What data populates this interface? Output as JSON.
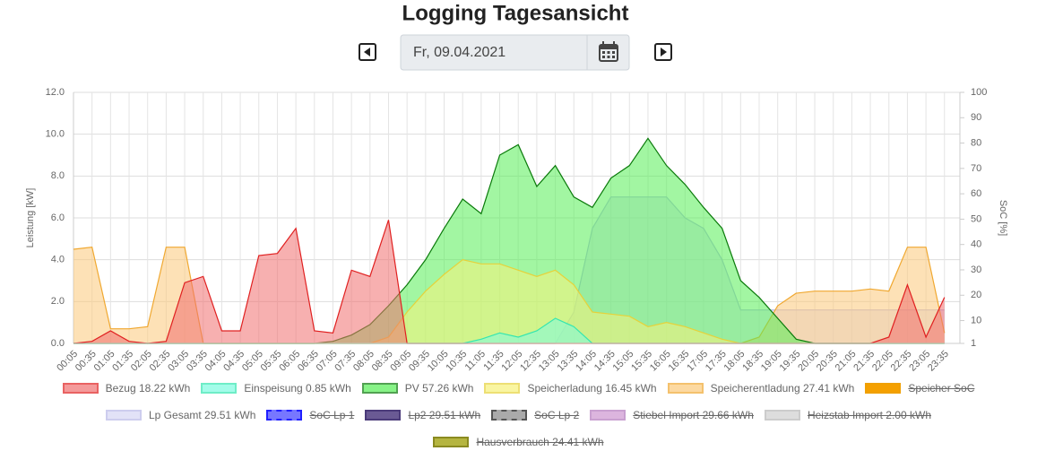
{
  "page": {
    "title": "Logging Tagesansicht",
    "date": "Fr, 09.04.2021"
  },
  "chart_data": {
    "type": "area",
    "y_label": "Leistung [kW]",
    "y2_label": "SoC [%]",
    "categories": [
      "00:05",
      "00:35",
      "01:05",
      "01:35",
      "02:05",
      "02:35",
      "03:05",
      "03:35",
      "04:05",
      "04:35",
      "05:05",
      "05:35",
      "06:05",
      "06:35",
      "07:05",
      "07:35",
      "08:05",
      "08:35",
      "09:05",
      "09:35",
      "10:05",
      "10:35",
      "11:05",
      "11:35",
      "12:05",
      "12:35",
      "13:05",
      "13:35",
      "14:05",
      "14:35",
      "15:05",
      "15:35",
      "16:05",
      "16:35",
      "17:05",
      "17:35",
      "18:05",
      "18:35",
      "19:05",
      "19:35",
      "20:05",
      "20:35",
      "21:05",
      "21:35",
      "22:05",
      "22:35",
      "23:05",
      "23:35"
    ],
    "ylim": [
      0,
      12
    ],
    "yticks": [
      {
        "value": 0,
        "label": "0.0"
      },
      {
        "value": 2,
        "label": "2.0"
      },
      {
        "value": 4,
        "label": "4.0"
      },
      {
        "value": 6,
        "label": "6.0"
      },
      {
        "value": 8,
        "label": "8.0"
      },
      {
        "value": 10,
        "label": "10.0"
      },
      {
        "value": 12,
        "label": "12.0"
      }
    ],
    "y2lim": [
      1,
      100
    ],
    "y2ticks": [
      1,
      10,
      20,
      30,
      40,
      50,
      60,
      70,
      80,
      90,
      100
    ],
    "grid": true,
    "series": [
      {
        "name": "Lp Gesamt 29.51 kWh",
        "color": "#b9b9e8",
        "fill": "#d6d6f5",
        "values": [
          0,
          0,
          0,
          0,
          0,
          0,
          0,
          0,
          0,
          0,
          0,
          0,
          0,
          0,
          0,
          0,
          0,
          0,
          0,
          0,
          0,
          0,
          0,
          0,
          0,
          0,
          0,
          1.5,
          5.5,
          7.0,
          7.0,
          7.0,
          7.0,
          6.0,
          5.5,
          4.0,
          1.6,
          1.6,
          1.6,
          1.6,
          1.6,
          1.6,
          1.6,
          1.6,
          1.6,
          1.6,
          1.6,
          1.6
        ]
      },
      {
        "name": "Speicherentladung 27.41 kWh",
        "color": "#f0a830",
        "fill": "#fcc97a",
        "values": [
          4.5,
          4.6,
          0.7,
          0.7,
          0.8,
          4.6,
          4.6,
          0,
          0,
          0,
          0,
          0,
          0,
          0,
          0,
          0,
          0,
          0,
          0,
          0,
          0,
          0,
          0,
          0,
          0,
          0,
          0,
          0,
          0,
          0,
          0,
          0,
          0,
          0,
          0,
          0,
          0,
          0.3,
          1.8,
          2.4,
          2.5,
          2.5,
          2.5,
          2.6,
          2.5,
          4.6,
          4.6,
          0.5
        ]
      },
      {
        "name": "PV 57.26 kWh",
        "color": "#0a7a0a",
        "fill": "#55ee55",
        "values": [
          0,
          0,
          0,
          0,
          0,
          0,
          0,
          0,
          0,
          0,
          0,
          0,
          0,
          0,
          0.1,
          0.4,
          0.9,
          1.8,
          2.8,
          4.0,
          5.5,
          6.9,
          6.2,
          9.0,
          9.5,
          7.5,
          8.5,
          7.0,
          6.5,
          7.9,
          8.5,
          9.8,
          8.5,
          7.6,
          6.5,
          5.5,
          3.0,
          2.2,
          1.2,
          0.2,
          0,
          0,
          0,
          0,
          0,
          0,
          0,
          0
        ]
      },
      {
        "name": "Speicherladung 16.45 kWh",
        "color": "#e6d23a",
        "fill": "#f7f27a",
        "values": [
          0,
          0,
          0,
          0,
          0,
          0,
          0,
          0,
          0,
          0,
          0,
          0,
          0,
          0,
          0,
          0,
          0,
          0.3,
          1.5,
          2.5,
          3.3,
          4.0,
          3.8,
          3.8,
          3.5,
          3.2,
          3.5,
          2.8,
          1.5,
          1.4,
          1.3,
          0.8,
          1.0,
          0.8,
          0.5,
          0.2,
          0,
          0,
          0,
          0,
          0,
          0,
          0,
          0,
          0,
          0,
          0,
          0
        ]
      },
      {
        "name": "Einspeisung 0.85 kWh",
        "color": "#33e6b0",
        "fill": "#7dfce0",
        "values": [
          0,
          0,
          0,
          0,
          0,
          0,
          0,
          0,
          0,
          0,
          0,
          0,
          0,
          0,
          0,
          0,
          0,
          0,
          0,
          0,
          0,
          0,
          0.2,
          0.5,
          0.3,
          0.6,
          1.2,
          0.8,
          0,
          0,
          0,
          0,
          0,
          0,
          0,
          0,
          0,
          0,
          0,
          0,
          0,
          0,
          0,
          0,
          0,
          0,
          0,
          0
        ]
      },
      {
        "name": "Bezug 18.22 kWh",
        "color": "#e02020",
        "fill": "#f07070",
        "values": [
          0,
          0.1,
          0.6,
          0.1,
          0,
          0.1,
          2.9,
          3.2,
          0.6,
          0.6,
          4.2,
          4.3,
          5.5,
          0.6,
          0.5,
          3.5,
          3.2,
          5.9,
          0,
          0,
          0,
          0,
          0,
          0,
          0,
          0,
          0,
          0,
          0,
          0,
          0,
          0,
          0,
          0,
          0,
          0,
          0,
          0,
          0,
          0,
          0,
          0,
          0,
          0,
          0.3,
          2.8,
          0.3,
          2.2
        ]
      }
    ],
    "legend": [
      {
        "series": 5
      },
      {
        "series": 4
      },
      {
        "series": 2
      },
      {
        "series": 3
      },
      {
        "series": 1
      },
      {
        "name": "Speicher SoC",
        "color": "#f0a000",
        "fill": "#f5a000",
        "hidden": true
      },
      {
        "series": 0
      },
      {
        "name": "SoC Lp 1",
        "color": "#2020ff",
        "fill": "#7777ff",
        "dashed": true,
        "hidden": true
      },
      {
        "name": "Lp2 29.51 kWh",
        "color": "#4b3b7a",
        "fill": "#6a5a94",
        "hidden": true
      },
      {
        "name": "SoC Lp 2",
        "color": "#555555",
        "fill": "#aaaaaa",
        "dashed": true,
        "hidden": true
      },
      {
        "name": "Stiebel Import 29.66 kWh",
        "color": "#c9a0d0",
        "fill": "#dcb5de",
        "hidden": true
      },
      {
        "name": "Heizstab Import 2.00 kWh",
        "color": "#cccccc",
        "fill": "#dddddd",
        "hidden": true
      },
      {
        "name": "Hausverbrauch 24.41 kWh",
        "color": "#8a8a20",
        "fill": "#b5b540",
        "hidden": true
      }
    ]
  }
}
